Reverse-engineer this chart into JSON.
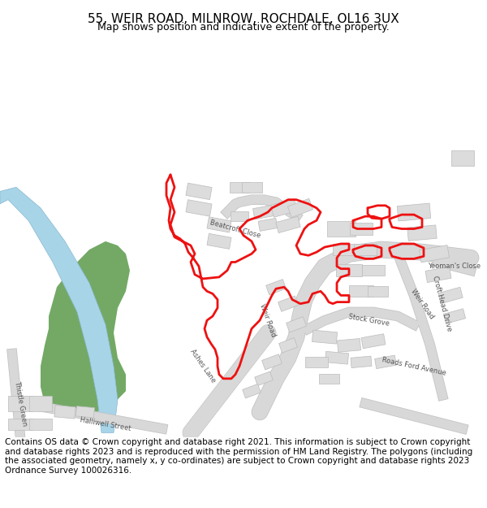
{
  "title_line1": "55, WEIR ROAD, MILNROW, ROCHDALE, OL16 3UX",
  "title_line2": "Map shows position and indicative extent of the property.",
  "footer_text": "Contains OS data © Crown copyright and database right 2021. This information is subject to Crown copyright and database rights 2023 and is reproduced with the permission of HM Land Registry. The polygons (including the associated geometry, namely x, y co-ordinates) are subject to Crown copyright and database rights 2023 Ordnance Survey 100026316.",
  "bg_color": "#f5f5f0",
  "map_bg": "#ffffff",
  "road_color": "#e8e8e8",
  "road_stroke": "#cccccc",
  "building_fill": "#e0e0e0",
  "building_stroke": "#bbbbbb",
  "green_fill": "#5a9a4a",
  "water_fill": "#a8d4e8",
  "water_stroke": "#88b8d0",
  "red_poly_color": "#ee1111",
  "red_poly_lw": 2.0,
  "title_fontsize": 11,
  "subtitle_fontsize": 9,
  "footer_fontsize": 7.5
}
